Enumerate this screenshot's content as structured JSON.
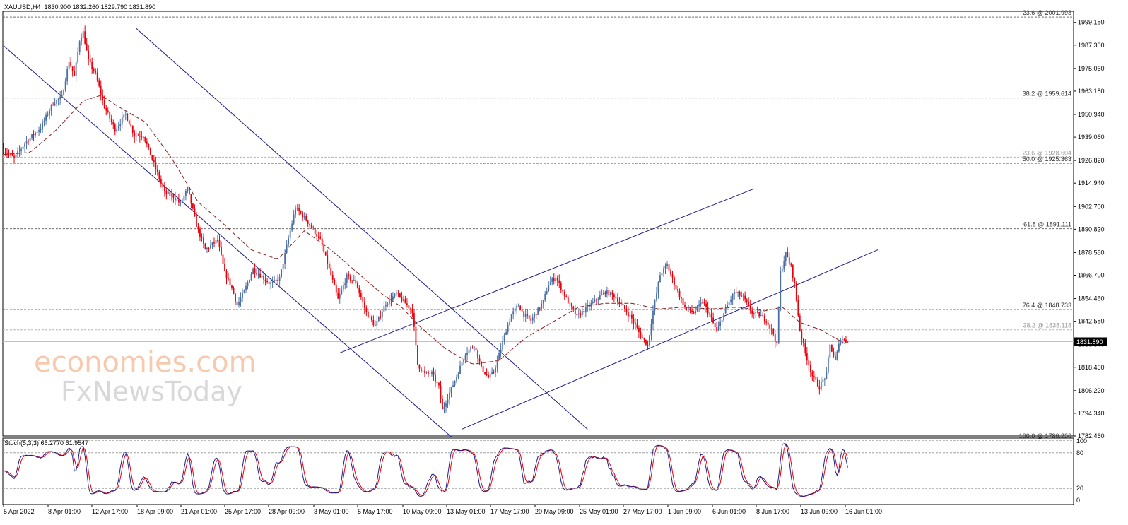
{
  "header": {
    "main": "XAUUSD,H4  1830.900 1832.260 1829.790 1831.890",
    "stoch": "Stoch(5,3,3) 66.2770 61.9547"
  },
  "watermark": {
    "line1": "economies.com",
    "line2": "FxNewsToday"
  },
  "colors": {
    "bull": "#4a6fa5",
    "bear": "#e8000b",
    "channel": "#1c1c8c",
    "ma": "#8b1a1a",
    "grid": "#707070",
    "priceLine": "#a8c8d8",
    "stochMain": "#1c1c8c",
    "stochSignal": "#e8000b"
  },
  "chart_data": {
    "type": "candlestick",
    "symbol": "XAUUSD",
    "timeframe": "H4",
    "ylim": [
      1782.46,
      2005.0
    ],
    "price_ticks": [
      "1999.180",
      "1987.300",
      "1975.060",
      "1963.180",
      "1950.940",
      "1939.060",
      "1926.820",
      "1914.940",
      "1902.700",
      "1890.820",
      "1878.580",
      "1866.700",
      "1854.460",
      "1842.580",
      "1830.340",
      "1818.460",
      "1806.220",
      "1794.340",
      "1782.460"
    ],
    "current_price": "1831.890",
    "x_ticks": [
      "5 Apr 2022",
      "8 Apr 01:00",
      "12 Apr 17:00",
      "18 Apr 09:00",
      "21 Apr 01:00",
      "25 Apr 17:00",
      "28 Apr 09:00",
      "3 May 01:00",
      "5 May 17:00",
      "10 May 09:00",
      "13 May 01:00",
      "17 May 17:00",
      "20 May 09:00",
      "25 May 01:00",
      "27 May 17:00",
      "1 Jun 09:00",
      "6 Jun 01:00",
      "8 Jun 17:00",
      "13 Jun 09:00",
      "16 Jun 01:00"
    ],
    "fib_levels": [
      {
        "label": "23.6 @ 2001.993",
        "value": 2001.993
      },
      {
        "label": "38.2 @ 1959.614",
        "value": 1959.614
      },
      {
        "label": "23.6 @ 1928.604",
        "value": 1928.604
      },
      {
        "label": "50.0 @ 1925.363",
        "value": 1925.363
      },
      {
        "label": "61.8 @ 1891.111",
        "value": 1891.111
      },
      {
        "label": "76.4 @ 1848.733",
        "value": 1848.733
      },
      {
        "label": "38.2 @ 1838.118",
        "value": 1838.118
      },
      {
        "label": "100.0 @ 1780.230",
        "value": 1780.23
      }
    ],
    "path": [
      [
        0,
        1933
      ],
      [
        7,
        1928
      ],
      [
        14,
        1937
      ],
      [
        22,
        1944
      ],
      [
        29,
        1957
      ],
      [
        34,
        1960
      ],
      [
        38,
        1979
      ],
      [
        41,
        1971
      ],
      [
        44,
        1990
      ],
      [
        46,
        1994
      ],
      [
        49,
        1979
      ],
      [
        53,
        1972
      ],
      [
        58,
        1955
      ],
      [
        64,
        1943
      ],
      [
        70,
        1951
      ],
      [
        75,
        1940
      ],
      [
        80,
        1940
      ],
      [
        86,
        1925
      ],
      [
        92,
        1910
      ],
      [
        97,
        1908
      ],
      [
        101,
        1904
      ],
      [
        105,
        1912
      ],
      [
        110,
        1893
      ],
      [
        115,
        1880
      ],
      [
        122,
        1885
      ],
      [
        126,
        1868
      ],
      [
        130,
        1860
      ],
      [
        133,
        1851
      ],
      [
        137,
        1858
      ],
      [
        142,
        1870
      ],
      [
        147,
        1866
      ],
      [
        152,
        1862
      ],
      [
        157,
        1865
      ],
      [
        162,
        1886
      ],
      [
        166,
        1902
      ],
      [
        170,
        1898
      ],
      [
        175,
        1892
      ],
      [
        180,
        1885
      ],
      [
        185,
        1870
      ],
      [
        190,
        1854
      ],
      [
        195,
        1866
      ],
      [
        200,
        1863
      ],
      [
        206,
        1847
      ],
      [
        211,
        1840
      ],
      [
        217,
        1852
      ],
      [
        223,
        1857
      ],
      [
        228,
        1852
      ],
      [
        232,
        1848
      ],
      [
        235,
        1820
      ],
      [
        239,
        1815
      ],
      [
        243,
        1815
      ],
      [
        247,
        1808
      ],
      [
        249,
        1796
      ],
      [
        253,
        1805
      ],
      [
        258,
        1816
      ],
      [
        262,
        1826
      ],
      [
        267,
        1830
      ],
      [
        271,
        1818
      ],
      [
        275,
        1813
      ],
      [
        278,
        1816
      ],
      [
        281,
        1825
      ],
      [
        285,
        1838
      ],
      [
        288,
        1846
      ],
      [
        292,
        1851
      ],
      [
        295,
        1846
      ],
      [
        299,
        1843
      ],
      [
        302,
        1847
      ],
      [
        306,
        1853
      ],
      [
        309,
        1862
      ],
      [
        313,
        1866
      ],
      [
        317,
        1858
      ],
      [
        321,
        1851
      ],
      [
        325,
        1845
      ],
      [
        330,
        1849
      ],
      [
        336,
        1854
      ],
      [
        341,
        1858
      ],
      [
        346,
        1856
      ],
      [
        351,
        1850
      ],
      [
        356,
        1844
      ],
      [
        361,
        1835
      ],
      [
        365,
        1830
      ],
      [
        368,
        1848
      ],
      [
        372,
        1867
      ],
      [
        376,
        1872
      ],
      [
        381,
        1860
      ],
      [
        386,
        1850
      ],
      [
        391,
        1847
      ],
      [
        396,
        1853
      ],
      [
        400,
        1846
      ],
      [
        404,
        1837
      ],
      [
        409,
        1849
      ],
      [
        414,
        1858
      ],
      [
        419,
        1855
      ],
      [
        424,
        1847
      ],
      [
        428,
        1846
      ],
      [
        432,
        1843
      ],
      [
        436,
        1836
      ],
      [
        438,
        1830
      ],
      [
        440,
        1868
      ],
      [
        443,
        1878
      ],
      [
        446,
        1871
      ],
      [
        448,
        1862
      ],
      [
        451,
        1838
      ],
      [
        454,
        1826
      ],
      [
        458,
        1814
      ],
      [
        462,
        1808
      ],
      [
        466,
        1815
      ],
      [
        468,
        1830
      ],
      [
        471,
        1822
      ],
      [
        474,
        1834
      ],
      [
        477,
        1832
      ]
    ],
    "ma_path": [
      [
        0,
        1930
      ],
      [
        15,
        1931
      ],
      [
        30,
        1943
      ],
      [
        45,
        1958
      ],
      [
        55,
        1961
      ],
      [
        65,
        1955
      ],
      [
        80,
        1947
      ],
      [
        95,
        1928
      ],
      [
        110,
        1905
      ],
      [
        125,
        1893
      ],
      [
        140,
        1880
      ],
      [
        155,
        1875
      ],
      [
        170,
        1890
      ],
      [
        185,
        1880
      ],
      [
        200,
        1868
      ],
      [
        215,
        1856
      ],
      [
        225,
        1850
      ],
      [
        235,
        1840
      ],
      [
        250,
        1828
      ],
      [
        265,
        1820
      ],
      [
        280,
        1822
      ],
      [
        295,
        1834
      ],
      [
        310,
        1842
      ],
      [
        325,
        1850
      ],
      [
        340,
        1852
      ],
      [
        355,
        1852
      ],
      [
        370,
        1849
      ],
      [
        385,
        1850
      ],
      [
        400,
        1849
      ],
      [
        415,
        1850
      ],
      [
        430,
        1848
      ],
      [
        440,
        1850
      ],
      [
        450,
        1842
      ],
      [
        462,
        1838
      ],
      [
        477,
        1830
      ]
    ],
    "channels": [
      {
        "from": [
          0,
          1987
        ],
        "to": [
          253,
          1782
        ]
      },
      {
        "from": [
          75,
          1996
        ],
        "to": [
          330,
          1786
        ]
      },
      {
        "from": [
          190,
          1826
        ],
        "to": [
          424,
          1912
        ]
      },
      {
        "from": [
          259,
          1786
        ],
        "to": [
          494,
          1880
        ]
      }
    ],
    "stochastic": {
      "params": "Stoch(5,3,3)",
      "main": 66.277,
      "signal": 61.9547,
      "ylim": [
        0,
        100
      ],
      "levels": [
        20,
        80
      ],
      "tick_labels": [
        "100",
        "80",
        "20",
        "0"
      ]
    }
  }
}
